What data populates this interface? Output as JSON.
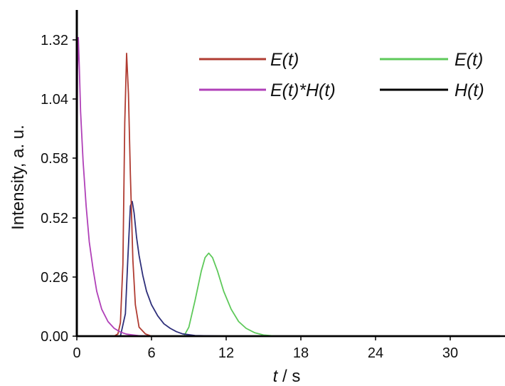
{
  "chart_data": {
    "type": "line",
    "xlabel": "t / s",
    "ylabel": "Intensity, a. u.",
    "xlim": [
      0,
      34
    ],
    "ylim": [
      0,
      1.4
    ],
    "x_ticks": [
      0,
      6,
      12,
      18,
      24,
      30
    ],
    "y_ticks": [
      0.0,
      0.26,
      0.52,
      0.58,
      1.04,
      1.32
    ],
    "y_tick_labels": [
      "0.00",
      "0.26",
      "0.52",
      "0.58",
      "1.04",
      "1.32"
    ],
    "legend_position": "top-right",
    "series": [
      {
        "name": "E(t)",
        "color": "#b03c32",
        "x": [
          0,
          3.0,
          3.3,
          3.5,
          3.7,
          3.85,
          4.0,
          4.15,
          4.3,
          4.5,
          4.7,
          5.0,
          5.5,
          6.0,
          6.5,
          7.0,
          12.0,
          30.0
        ],
        "y": [
          0,
          0,
          0.01,
          0.06,
          0.32,
          0.95,
          1.26,
          1.08,
          0.72,
          0.34,
          0.14,
          0.04,
          0.01,
          0,
          0,
          0,
          0,
          0
        ]
      },
      {
        "name": "E(t)",
        "color": "#5ec95a",
        "x": [
          0,
          8.6,
          9.0,
          9.5,
          10.0,
          10.3,
          10.6,
          10.9,
          11.3,
          11.8,
          12.4,
          13.0,
          13.6,
          14.3,
          15.0,
          16.0,
          20.0,
          30.0
        ],
        "y": [
          0,
          0,
          0.04,
          0.16,
          0.29,
          0.35,
          0.37,
          0.35,
          0.29,
          0.2,
          0.12,
          0.065,
          0.035,
          0.015,
          0.005,
          0,
          0,
          0
        ]
      },
      {
        "name": "E(t)*H(t)",
        "color": "#b040b8",
        "x": [
          0,
          0.05,
          0.12,
          0.2,
          0.3,
          0.5,
          0.75,
          1.0,
          1.3,
          1.6,
          2.0,
          2.5,
          3.0,
          3.5,
          4.0,
          5.0,
          6.0,
          8.0,
          12.0,
          20.0,
          30.0,
          30.4
        ],
        "y": [
          0.38,
          1.18,
          1.33,
          1.2,
          1.0,
          0.78,
          0.58,
          0.42,
          0.3,
          0.2,
          0.12,
          0.065,
          0.035,
          0.018,
          0.009,
          0.002,
          0,
          0,
          0,
          0,
          0,
          0
        ]
      },
      {
        "name": "H(t)",
        "color": "#000000",
        "x": [
          0,
          10,
          20,
          30.2,
          34
        ],
        "y": [
          0,
          0,
          0,
          0,
          0
        ]
      },
      {
        "color": "#2e2f7a",
        "x": [
          0,
          3.5,
          3.9,
          4.1,
          4.3,
          4.45,
          4.6,
          4.8,
          5.0,
          5.3,
          5.6,
          6.0,
          6.5,
          7.0,
          7.5,
          8.0,
          8.5,
          9.5,
          12.0,
          30.0
        ],
        "y": [
          0,
          0,
          0.1,
          0.35,
          0.58,
          0.6,
          0.55,
          0.44,
          0.36,
          0.27,
          0.2,
          0.14,
          0.09,
          0.055,
          0.035,
          0.02,
          0.01,
          0.003,
          0,
          0
        ]
      }
    ]
  }
}
